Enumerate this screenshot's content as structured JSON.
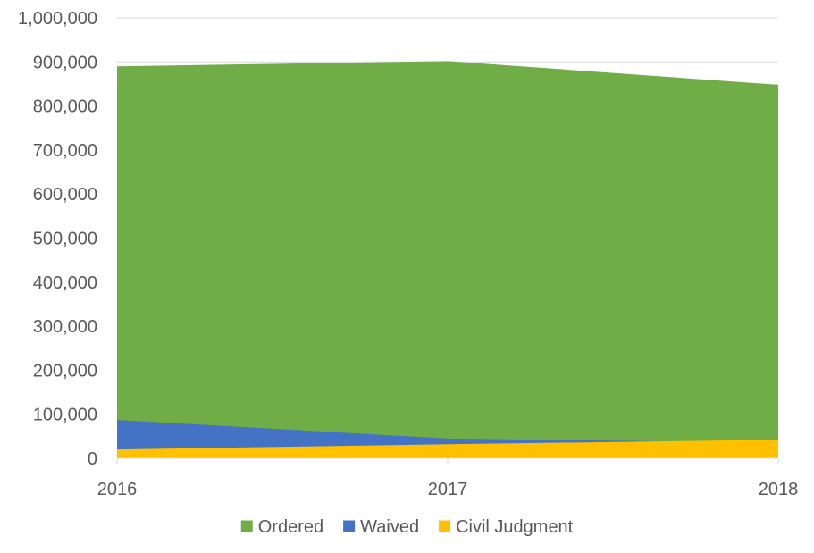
{
  "chart_data": {
    "type": "area",
    "title": "",
    "xlabel": "",
    "ylabel": "",
    "categories": [
      "2016",
      "2017",
      "2018"
    ],
    "series": [
      {
        "name": "Ordered",
        "values": [
          890000,
          902000,
          848000
        ],
        "color": "#70AD47"
      },
      {
        "name": "Waived",
        "values": [
          87000,
          45000,
          35000
        ],
        "color": "#4472C4"
      },
      {
        "name": "Civil Judgment",
        "values": [
          20000,
          32000,
          42000
        ],
        "color": "#FFC000"
      }
    ],
    "ylim": [
      0,
      1000000
    ],
    "yticks": [
      0,
      100000,
      200000,
      300000,
      400000,
      500000,
      600000,
      700000,
      800000,
      900000,
      1000000
    ],
    "ytick_labels": [
      "0",
      "100,000",
      "200,000",
      "300,000",
      "400,000",
      "500,000",
      "600,000",
      "700,000",
      "800,000",
      "900,000",
      "1,000,000"
    ],
    "grid": true,
    "legend_position": "bottom"
  }
}
